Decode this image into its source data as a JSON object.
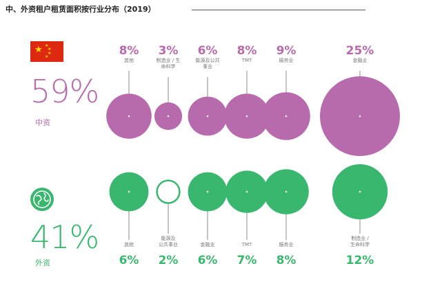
{
  "title": "中、外资租户租赁面积按行业分布（2019）",
  "colors": {
    "domestic": "#b86bac",
    "foreign": "#3ab76f",
    "title": "#222222"
  },
  "domestic": {
    "percent": "59%",
    "label": "中资",
    "flag_icon": "china-flag-icon"
  },
  "foreign": {
    "percent": "41%",
    "label": "外资",
    "globe_icon": "globe-icon"
  },
  "chart_data": [
    {
      "type": "bubble",
      "name": "中资",
      "categories": [
        "其他",
        "制造业／生命科学",
        "能源及公共事业",
        "TMT",
        "服务业",
        "金融业"
      ],
      "category_lines": [
        [
          "其他"
        ],
        [
          "制造业 / 生",
          "命科学"
        ],
        [
          "能源及公共",
          "事业"
        ],
        [
          "TMT"
        ],
        [
          "服务业"
        ],
        [
          "金融业"
        ]
      ],
      "values": [
        8,
        3,
        6,
        8,
        9,
        25
      ],
      "value_labels": [
        "8%",
        "3%",
        "6%",
        "8%",
        "9%",
        "25%"
      ]
    },
    {
      "type": "bubble",
      "name": "外资",
      "categories": [
        "其他",
        "能源及公共事业",
        "金融业",
        "TMT",
        "服务业",
        "制造业／生命科学"
      ],
      "category_lines": [
        [
          "其他"
        ],
        [
          "能源及",
          "公共事业"
        ],
        [
          "金融业"
        ],
        [
          "TMT"
        ],
        [
          "服务业"
        ],
        [
          "制造业 /",
          "生命科学"
        ]
      ],
      "values": [
        6,
        2,
        6,
        7,
        8,
        12
      ],
      "value_labels": [
        "6%",
        "2%",
        "6%",
        "7%",
        "8%",
        "12%"
      ]
    }
  ]
}
